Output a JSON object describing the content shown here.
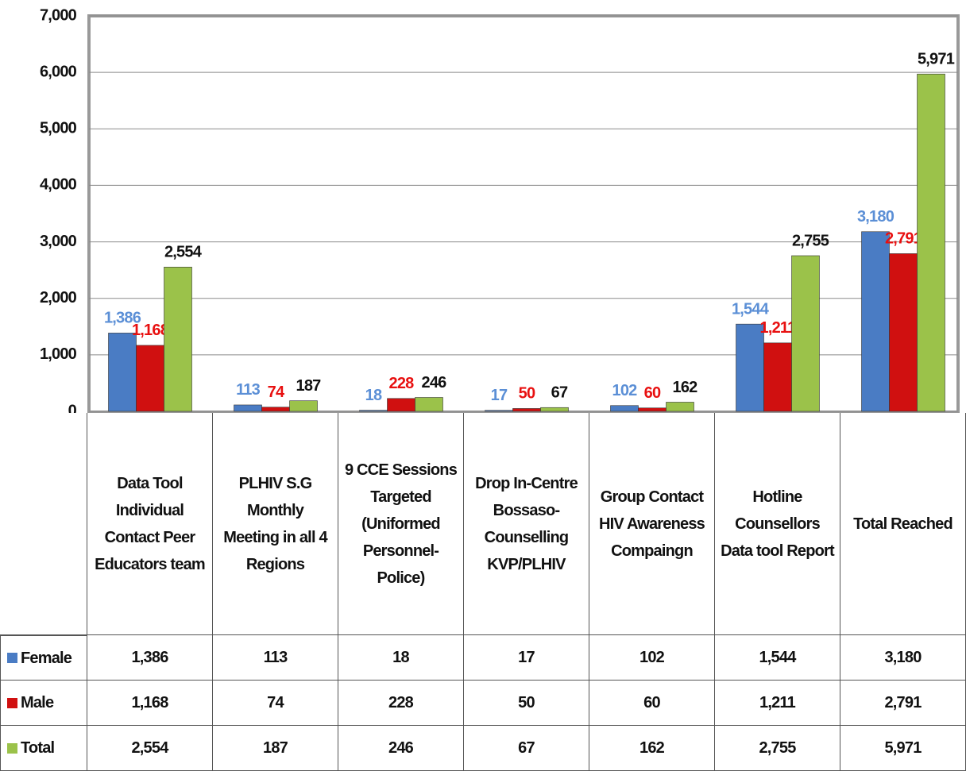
{
  "chart_data": {
    "type": "bar",
    "categories": [
      "Data Tool Individual Contact Peer Educators team",
      "PLHIV S.G Monthly Meeting in all 4 Regions",
      "9 CCE Sessions Targeted (Uniformed Personnel-Police)",
      "Drop In-Centre Bossaso-Counselling KVP/PLHIV",
      "Group Contact HIV Awareness Compaingn",
      "Hotline Counsellors Data tool Report",
      "Total Reached"
    ],
    "series": [
      {
        "name": "Female",
        "color": "#4a7cc4",
        "label_color": "#5b8fd6",
        "values": [
          1386,
          113,
          18,
          17,
          102,
          1544,
          3180
        ],
        "value_labels": [
          "1,386",
          "113",
          "18",
          "17",
          "102",
          "1,544",
          "3,180"
        ]
      },
      {
        "name": "Male",
        "color": "#d01010",
        "label_color": "#e81010",
        "values": [
          1168,
          74,
          228,
          50,
          60,
          1211,
          2791
        ],
        "value_labels": [
          "1,168",
          "74",
          "228",
          "50",
          "60",
          "1,211",
          "2,791"
        ]
      },
      {
        "name": "Total",
        "color": "#9bc24a",
        "label_color": "#111111",
        "values": [
          2554,
          187,
          246,
          67,
          162,
          2755,
          5971
        ],
        "value_labels": [
          "2,554",
          "187",
          "246",
          "67",
          "162",
          "2,755",
          "5,971"
        ]
      }
    ],
    "ylim": [
      0,
      7000
    ],
    "yticks": [
      0,
      {
        "value": 1000,
        "label": "1,000"
      },
      {
        "value": 2000,
        "label": "2,000"
      },
      {
        "value": 3000,
        "label": "3,000"
      },
      {
        "value": 4000,
        "label": "4,000"
      },
      {
        "value": 5000,
        "label": "5,000"
      },
      {
        "value": 6000,
        "label": "6,000"
      },
      {
        "value": 7000,
        "label": "7,000"
      }
    ],
    "grid": true
  }
}
